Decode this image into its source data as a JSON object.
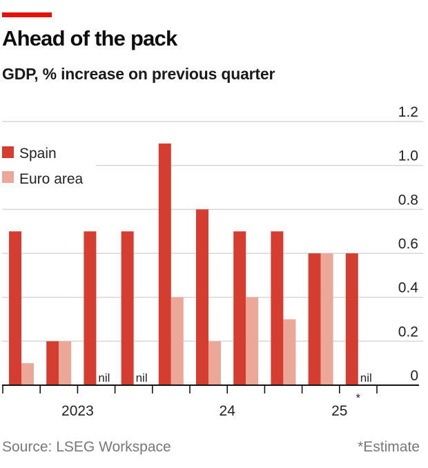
{
  "colors": {
    "accent": "#e3120b",
    "spain": "#d63d31",
    "euro_area": "#eba898",
    "grid": "#d8d8d8",
    "axis": "#121212"
  },
  "chart_data": {
    "type": "bar",
    "title": "Ahead of the pack",
    "subtitle": "GDP, % increase on previous quarter",
    "xlabel": "",
    "ylabel": "",
    "ylim": [
      0,
      1.2
    ],
    "yticks": [
      0,
      0.2,
      0.4,
      0.6,
      0.8,
      1.0,
      1.2
    ],
    "ytick_labels": [
      "0",
      "0.2",
      "0.4",
      "0.6",
      "0.8",
      "1.0",
      "1.2"
    ],
    "y_axis_side": "right",
    "grid": true,
    "legend_position": "top-left",
    "categories": [
      "2023 Q1",
      "2023 Q2",
      "2023 Q3",
      "2023 Q4",
      "2024 Q1",
      "2024 Q2",
      "2024 Q3",
      "2024 Q4",
      "2025 Q1",
      "2025 Q2"
    ],
    "year_labels": [
      {
        "label": "2023",
        "quarters": [
          "2023 Q1",
          "2023 Q2",
          "2023 Q3",
          "2023 Q4"
        ]
      },
      {
        "label": "24",
        "quarters": [
          "2024 Q1",
          "2024 Q2",
          "2024 Q3",
          "2024 Q4"
        ]
      },
      {
        "label": "25",
        "quarters": [
          "2025 Q1",
          "2025 Q2"
        ]
      }
    ],
    "series": [
      {
        "name": "Spain",
        "values": [
          0.7,
          0.2,
          0.7,
          0.7,
          1.1,
          0.8,
          0.7,
          0.7,
          0.6,
          0.6
        ]
      },
      {
        "name": "Euro area",
        "values": [
          0.1,
          0.2,
          0.0,
          0.0,
          0.4,
          0.2,
          0.4,
          0.3,
          0.6,
          0.0
        ]
      }
    ],
    "annotations": [
      {
        "category": "2023 Q3",
        "series": "Euro area",
        "text": "nil"
      },
      {
        "category": "2023 Q4",
        "series": "Euro area",
        "text": "nil"
      },
      {
        "category": "2025 Q2",
        "series": "Euro area",
        "text": "nil"
      },
      {
        "category": "2025 Q2",
        "text": "*",
        "meaning": "Estimate"
      }
    ]
  },
  "footer": {
    "source": "Source: LSEG Workspace",
    "note": "*Estimate"
  }
}
